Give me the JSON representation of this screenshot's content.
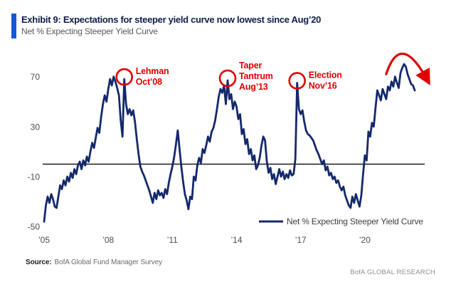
{
  "header": {
    "title": "Exhibit 9: Expectations for steeper yield curve now lowest since Aug’20",
    "subtitle": "Net % Expecting Steeper Yield Curve"
  },
  "legend": {
    "label": "Net % Expecting Steeper Yield Curve"
  },
  "source": {
    "label": "Source:",
    "text": "BofA Global Fund Manager Survey"
  },
  "branding": "BofA GLOBAL RESEARCH",
  "colors": {
    "line": "#14296b",
    "annotation_red": "#e00000",
    "accent_bar": "#1359d9",
    "title": "#101d4a",
    "subtitle": "#595959",
    "axis_text": "#4d4d4d",
    "zero_line": "#1a1a1a",
    "legend_text": "#3f3f3f",
    "source_text": "#6b6b6b",
    "branding_text": "#8f8f8f"
  },
  "chart_data": {
    "type": "line",
    "title": "Net % Expecting Steeper Yield Curve",
    "ylabel": "Net %",
    "ylim": [
      -55,
      88
    ],
    "y_ticks": [
      70,
      30,
      -10,
      -50
    ],
    "grid": false,
    "zero_line": true,
    "legend_position": "bottom-right-inside",
    "series": [
      {
        "name": "Net % Expecting Steeper Yield Curve",
        "start": "2005-01",
        "end": "2022-05",
        "frequency": "monthly",
        "values": [
          -46,
          -33,
          -26,
          -31,
          -24,
          -28,
          -34,
          -35,
          -26,
          -17,
          -20,
          -13,
          -17,
          -10,
          -14,
          -7,
          -11,
          -4,
          -8,
          -1,
          2,
          -4,
          3,
          -1,
          6,
          2,
          10,
          17,
          13,
          21,
          29,
          25,
          38,
          48,
          55,
          50,
          60,
          68,
          63,
          70,
          66,
          61,
          55,
          35,
          22,
          68,
          48,
          40,
          44,
          39,
          43,
          34,
          20,
          8,
          -2,
          -6,
          -9,
          -13,
          -17,
          -21,
          -26,
          -31,
          -23,
          -28,
          -21,
          -25,
          -23,
          -27,
          -20,
          -24,
          -15,
          -8,
          -2,
          6,
          16,
          27,
          12,
          -2,
          -14,
          -24,
          -29,
          -36,
          -26,
          -28,
          -10,
          -13,
          -1,
          5,
          1,
          12,
          9,
          15,
          22,
          18,
          26,
          29,
          35,
          44,
          54,
          60,
          57,
          63,
          48,
          67,
          52,
          56,
          44,
          50,
          46,
          36,
          40,
          24,
          28,
          16,
          20,
          8,
          12,
          3,
          7,
          -4,
          -1,
          5,
          15,
          22,
          19,
          2,
          -7,
          -3,
          -12,
          -8,
          -16,
          -10,
          -4,
          -10,
          -6,
          -12,
          -8,
          -11,
          -5,
          -9,
          -8,
          4,
          65,
          44,
          40,
          43,
          34,
          27,
          24,
          23,
          21,
          19,
          15,
          11,
          8,
          4,
          0,
          3,
          -5,
          -2,
          -9,
          -7,
          -12,
          -10,
          -15,
          -13,
          -18,
          -21,
          -18,
          -25,
          -29,
          -33,
          -35,
          -26,
          -31,
          -24,
          -29,
          -34,
          -25,
          -8,
          7,
          3,
          26,
          22,
          33,
          30,
          45,
          59,
          55,
          51,
          60,
          56,
          52,
          62,
          59,
          66,
          62,
          70,
          65,
          61,
          73,
          77,
          80,
          78,
          72,
          68,
          64,
          63,
          59
        ]
      }
    ],
    "x_ticks": [
      {
        "label": "’05",
        "month_index": 0
      },
      {
        "label": "’08",
        "month_index": 36
      },
      {
        "label": "’11",
        "month_index": 72
      },
      {
        "label": "’14",
        "month_index": 108
      },
      {
        "label": "’17",
        "month_index": 144
      },
      {
        "label": "’20",
        "month_index": 180
      }
    ],
    "annotations": [
      {
        "kind": "circle-label",
        "lines": [
          "Lehman",
          "Oct’08"
        ],
        "month_index": 45,
        "value": 68
      },
      {
        "kind": "circle-label",
        "lines": [
          "Taper",
          "Tantrum",
          "Aug’13"
        ],
        "month_index": 103,
        "value": 67
      },
      {
        "kind": "circle-label",
        "lines": [
          "Election",
          "Nov’16"
        ],
        "month_index": 142,
        "value": 65
      },
      {
        "kind": "trend-arrow",
        "from_month_index": 192,
        "from_value": 72,
        "control_month_index": 200,
        "control_value": 107,
        "to_month_index": 208,
        "to_value": 67
      }
    ]
  }
}
